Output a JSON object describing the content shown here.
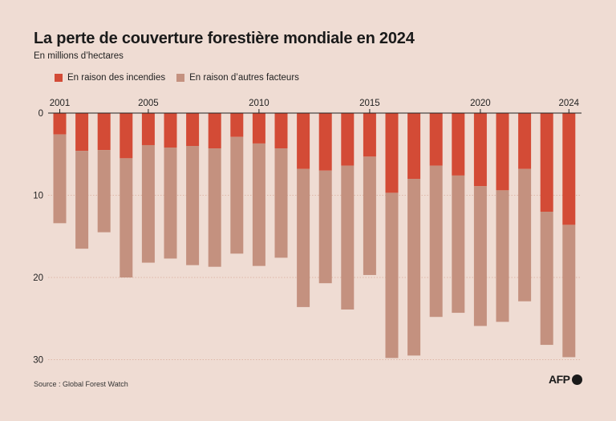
{
  "title": "La perte de couverture forestière mondiale en 2024",
  "subtitle": "En millions d’hectares",
  "legend": {
    "fire_label": "En raison des incendies",
    "other_label": "En raison d’autres facteurs"
  },
  "source": "Source : Global Forest Watch",
  "logo_text": "AFP",
  "colors": {
    "fire": "#d34b36",
    "other": "#c4917f",
    "background": "#efdcd3",
    "axis": "#222222",
    "grid": "#d9a999"
  },
  "chart_data": {
    "type": "bar",
    "stacked": true,
    "orientation": "downward",
    "categories": [
      2001,
      2002,
      2003,
      2004,
      2005,
      2006,
      2007,
      2008,
      2009,
      2010,
      2011,
      2012,
      2013,
      2014,
      2015,
      2016,
      2017,
      2018,
      2019,
      2020,
      2021,
      2022,
      2023,
      2024
    ],
    "x_tick_labels": [
      "2001",
      "2005",
      "2010",
      "2015",
      "2020",
      "2024"
    ],
    "series": [
      {
        "name": "En raison des incendies",
        "values": [
          2.6,
          4.6,
          4.5,
          5.5,
          3.9,
          4.2,
          4.0,
          4.3,
          2.9,
          3.7,
          4.3,
          6.8,
          7.0,
          6.4,
          5.3,
          9.7,
          8.0,
          6.4,
          7.6,
          8.9,
          9.4,
          6.8,
          12.0,
          13.6
        ]
      },
      {
        "name": "En raison d’autres facteurs",
        "values": [
          10.8,
          11.9,
          10.0,
          14.5,
          14.3,
          13.5,
          14.5,
          14.4,
          14.2,
          14.9,
          13.3,
          16.8,
          13.7,
          17.5,
          14.4,
          20.1,
          21.5,
          18.4,
          16.7,
          17.0,
          16.0,
          16.1,
          16.2,
          16.1
        ]
      }
    ],
    "y_ticks": [
      0,
      10,
      20,
      30
    ],
    "ylim": [
      0,
      30
    ],
    "grid": true,
    "legend_position": "top-left"
  }
}
